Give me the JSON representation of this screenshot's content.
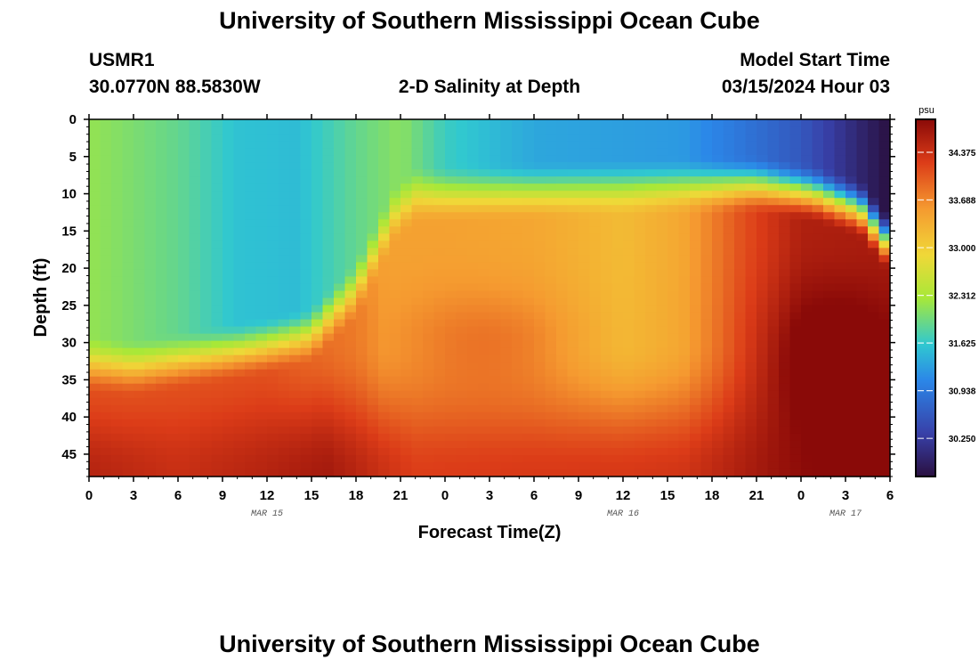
{
  "header": {
    "title": "University of Southern Mississippi Ocean Cube",
    "station": "USMR1",
    "coords": "30.0770N  88.5830W",
    "subtitle": "2-D Salinity at Depth",
    "model_label": "Model Start Time",
    "model_time": "03/15/2024 Hour 03",
    "footer_title": "University of Southern Mississippi Ocean Cube"
  },
  "colors": {
    "colormap": [
      "#2a1040",
      "#3840a8",
      "#2b87e8",
      "#30c8d0",
      "#a8e838",
      "#f0d838",
      "#f59a30",
      "#dc3c18",
      "#8a0a08"
    ]
  },
  "chart_data": {
    "type": "heatmap",
    "title": "2-D Salinity at Depth",
    "xlabel": "Forecast Time(Z)",
    "ylabel": "Depth (ft)",
    "x_ticks": [
      "0",
      "3",
      "6",
      "9",
      "12",
      "15",
      "18",
      "21",
      "0",
      "3",
      "6",
      "9",
      "12",
      "15",
      "18",
      "21",
      "0",
      "3",
      "6"
    ],
    "x_range_hours": [
      0,
      54
    ],
    "date_labels": [
      {
        "label": "MAR 15",
        "hour": 12
      },
      {
        "label": "MAR 16",
        "hour": 36
      },
      {
        "label": "MAR 17",
        "hour": 51
      }
    ],
    "y_ticks": [
      "0",
      "5",
      "10",
      "15",
      "20",
      "25",
      "30",
      "35",
      "40",
      "45"
    ],
    "y_range_ft": [
      0,
      48
    ],
    "colorbar": {
      "unit": "psu",
      "range": [
        29.7,
        34.85
      ],
      "ticks": [
        "34.375",
        "33.688",
        "33.000",
        "32.312",
        "31.625",
        "30.938",
        "30.250"
      ]
    },
    "value_range": [
      29.9,
      34.6
    ]
  }
}
